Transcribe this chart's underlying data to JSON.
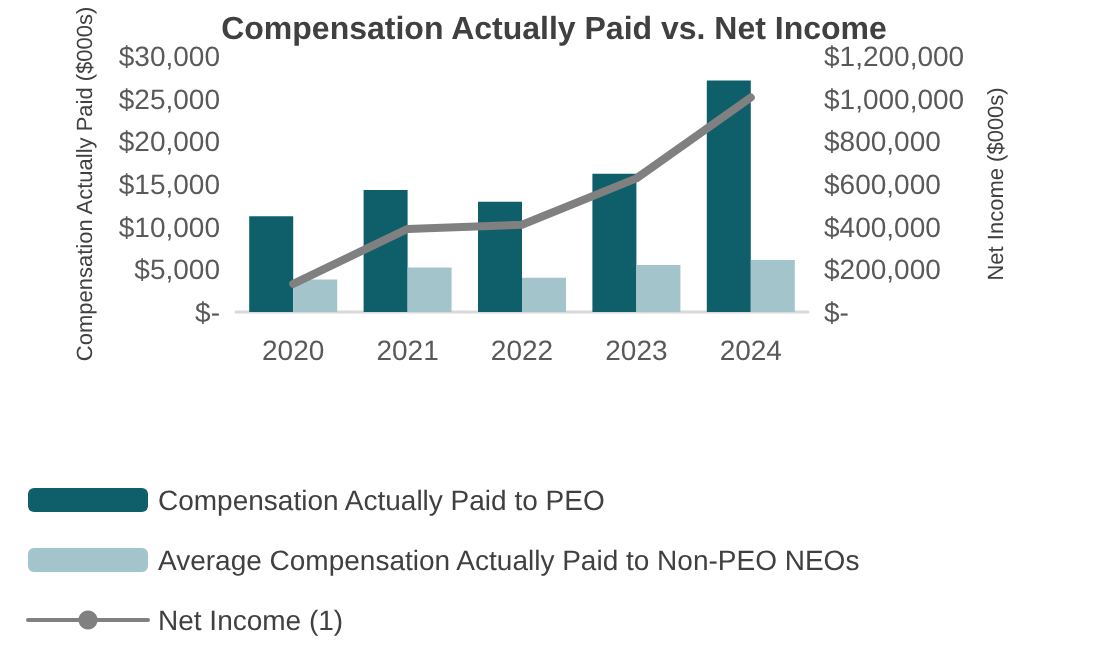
{
  "chart_data": {
    "type": "bar",
    "title": "Compensation Actually Paid vs. Net Income",
    "ylabel": "Compensation Actually Paid ($000s)",
    "y2label": "Net Income ($000s)",
    "categories": [
      "2020",
      "2021",
      "2022",
      "2023",
      "2024"
    ],
    "series": [
      {
        "name": "Compensation Actually Paid to PEO",
        "color": "#0f5f6b",
        "values": [
          11200,
          14300,
          12900,
          16200,
          27100
        ]
      },
      {
        "name": "Average Compensation Actually Paid to Non-PEO NEOs",
        "color": "#a3c4cb",
        "values": [
          3800,
          5200,
          4000,
          5500,
          6100
        ]
      },
      {
        "name": "Net Income (1)",
        "type": "line",
        "axis": "y2",
        "color": "#808080",
        "values": [
          132000,
          389000,
          409000,
          626000,
          1005000
        ]
      }
    ],
    "ylim": [
      0,
      30000
    ],
    "yticks": [
      {
        "value": 0,
        "label": "$-"
      },
      {
        "value": 5000,
        "label": "$5,000"
      },
      {
        "value": 10000,
        "label": "$10,000"
      },
      {
        "value": 15000,
        "label": "$15,000"
      },
      {
        "value": 20000,
        "label": "$20,000"
      },
      {
        "value": 25000,
        "label": "$25,000"
      },
      {
        "value": 30000,
        "label": "$30,000"
      }
    ],
    "y2lim": [
      0,
      1200000
    ],
    "y2ticks": [
      {
        "value": 0,
        "label": "$-"
      },
      {
        "value": 200000,
        "label": "$200,000"
      },
      {
        "value": 400000,
        "label": "$400,000"
      },
      {
        "value": 600000,
        "label": "$600,000"
      },
      {
        "value": 800000,
        "label": "$800,000"
      },
      {
        "value": 1000000,
        "label": "$1,000,000"
      },
      {
        "value": 1200000,
        "label": "$1,200,000"
      }
    ],
    "grid": false,
    "legend": "bottom",
    "marker": "none",
    "line_style": "solid"
  }
}
